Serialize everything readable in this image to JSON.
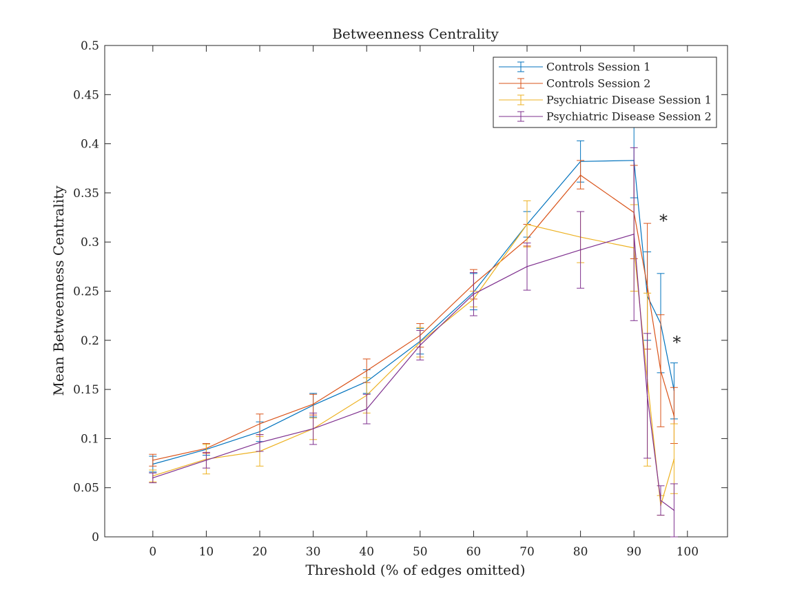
{
  "chart_data": {
    "type": "line",
    "title": "Betweenness Centrality",
    "xlabel": "Threshold (% of edges omitted)",
    "ylabel": "Mean Betweenness Centrality",
    "xlim": [
      -9,
      107.5
    ],
    "ylim": [
      0,
      0.5
    ],
    "xticks": [
      0,
      10,
      20,
      30,
      40,
      50,
      60,
      70,
      80,
      90,
      100
    ],
    "xtick_labels": [
      "0",
      "10",
      "20",
      "30",
      "40",
      "50",
      "60",
      "70",
      "80",
      "90",
      "100"
    ],
    "yticks": [
      0,
      0.05,
      0.1,
      0.15,
      0.2,
      0.25,
      0.3,
      0.35,
      0.4,
      0.45,
      0.5
    ],
    "ytick_labels": [
      "0",
      "0.05",
      "0.1",
      "0.15",
      "0.2",
      "0.25",
      "0.3",
      "0.35",
      "0.4",
      "0.45",
      "0.5"
    ],
    "grid": false,
    "legend_position": "top-right",
    "x": [
      0,
      10,
      20,
      30,
      40,
      50,
      60,
      70,
      80,
      90,
      92.5,
      95,
      97.5
    ],
    "series": [
      {
        "name": "Controls Session 1",
        "color": "#0072BD",
        "values": [
          0.074,
          0.089,
          0.107,
          0.134,
          0.158,
          0.199,
          0.249,
          0.318,
          0.382,
          0.383,
          0.245,
          0.217,
          0.149
        ],
        "lower": [
          0.066,
          0.083,
          0.097,
          0.122,
          0.146,
          0.186,
          0.231,
          0.305,
          0.361,
          0.345,
          0.2,
          0.167,
          0.12
        ],
        "upper": [
          0.082,
          0.095,
          0.117,
          0.146,
          0.17,
          0.212,
          0.268,
          0.331,
          0.403,
          0.421,
          0.29,
          0.268,
          0.177
        ]
      },
      {
        "name": "Controls Session 2",
        "color": "#D95319",
        "values": [
          0.078,
          0.09,
          0.115,
          0.135,
          0.169,
          0.205,
          0.257,
          0.303,
          0.368,
          0.33,
          0.255,
          0.169,
          0.123
        ],
        "lower": [
          0.072,
          0.085,
          0.104,
          0.124,
          0.157,
          0.193,
          0.242,
          0.296,
          0.354,
          0.283,
          0.191,
          0.112,
          0.095
        ],
        "upper": [
          0.084,
          0.095,
          0.125,
          0.145,
          0.181,
          0.217,
          0.272,
          0.318,
          0.383,
          0.378,
          0.319,
          0.226,
          0.152
        ]
      },
      {
        "name": "Psychiatric Disease Session 1",
        "color": "#EDB120",
        "values": [
          0.062,
          0.079,
          0.087,
          0.11,
          0.144,
          0.198,
          0.242,
          0.318,
          0.305,
          0.294,
          0.16,
          0.032,
          0.079
        ],
        "lower": [
          0.056,
          0.064,
          0.072,
          0.099,
          0.126,
          0.183,
          0.234,
          0.295,
          0.279,
          0.25,
          0.072,
          0.022,
          0.044
        ],
        "upper": [
          0.068,
          0.094,
          0.102,
          0.121,
          0.162,
          0.213,
          0.25,
          0.342,
          0.331,
          0.338,
          0.248,
          0.042,
          0.115
        ]
      },
      {
        "name": "Psychiatric Disease Session 2",
        "color": "#7E2F8E",
        "values": [
          0.06,
          0.078,
          0.096,
          0.11,
          0.13,
          0.195,
          0.247,
          0.275,
          0.292,
          0.308,
          0.143,
          0.037,
          0.027
        ],
        "lower": [
          0.055,
          0.07,
          0.087,
          0.094,
          0.115,
          0.18,
          0.225,
          0.251,
          0.253,
          0.22,
          0.08,
          0.022,
          0.0
        ],
        "upper": [
          0.065,
          0.086,
          0.104,
          0.126,
          0.145,
          0.21,
          0.269,
          0.299,
          0.331,
          0.396,
          0.207,
          0.052,
          0.054
        ]
      }
    ],
    "annotations": [
      {
        "text": "*",
        "x": 95,
        "y": 0.323
      },
      {
        "text": "*",
        "x": 97.5,
        "y": 0.199
      }
    ]
  }
}
